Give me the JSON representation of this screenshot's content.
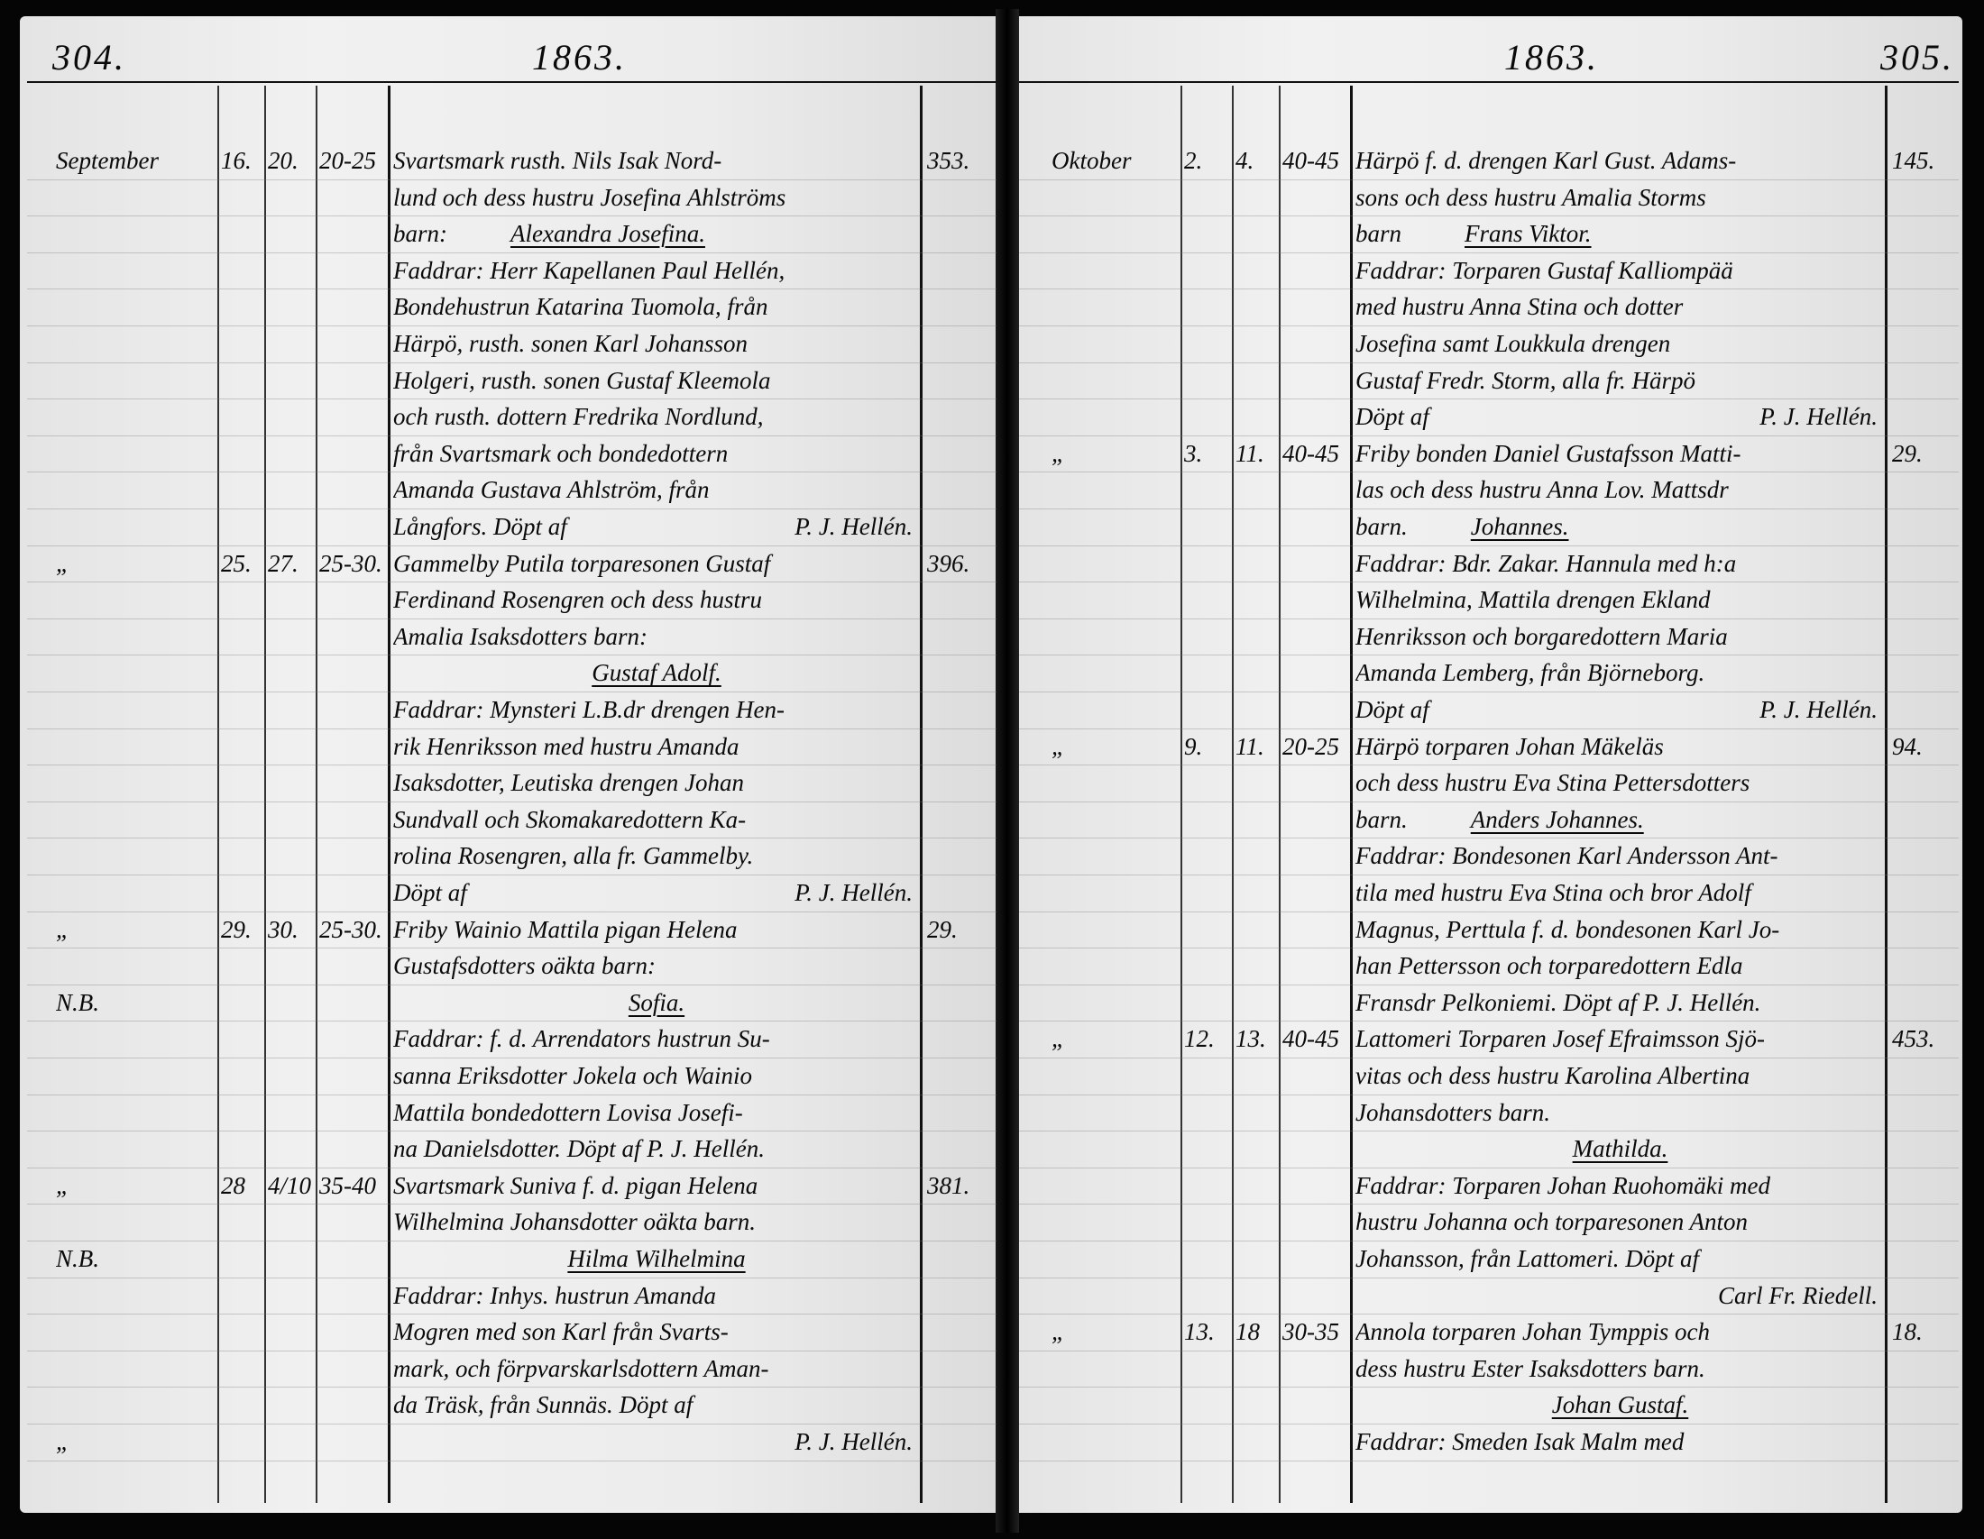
{
  "left_page": {
    "page_number": "304.",
    "year": "1863.",
    "lines": [
      {
        "m": "September",
        "a": "16.",
        "b": "20.",
        "c": "20-25",
        "t": "Svartsmark rusth. Nils Isak Nord-",
        "n": "353."
      },
      {
        "t": "lund och dess hustru Josefina Ahlströms"
      },
      {
        "t": "barn:",
        "name": "Alexandra Josefina."
      },
      {
        "t": "Faddrar: Herr Kapellanen Paul Hellén,"
      },
      {
        "t": "Bondehustrun Katarina Tuomola, från"
      },
      {
        "t": "Härpö, rusth. sonen Karl Johansson"
      },
      {
        "t": "Holgeri, rusth. sonen Gustaf Kleemola"
      },
      {
        "t": "och rusth. dottern Fredrika Nordlund,"
      },
      {
        "t": "från Svartsmark och bondedottern"
      },
      {
        "t": "Amanda Gustava Ahlström, från"
      },
      {
        "t": "Långfors. Döpt af",
        "sig": "P. J. Hellén."
      },
      {
        "m": "„",
        "a": "25.",
        "b": "27.",
        "c": "25-30.",
        "t": "Gammelby Putila torparesonen Gustaf",
        "n": "396."
      },
      {
        "t": "Ferdinand Rosengren och dess hustru"
      },
      {
        "t": "Amalia Isaksdotters barn:"
      },
      {
        "name": "Gustaf Adolf."
      },
      {
        "t": "Faddrar: Mynsteri L.B.dr drengen Hen-"
      },
      {
        "t": "rik Henriksson med hustru Amanda"
      },
      {
        "t": "Isaksdotter, Leutiska drengen Johan"
      },
      {
        "t": "Sundvall och Skomakaredottern Ka-"
      },
      {
        "t": "rolina Rosengren, alla fr. Gammelby."
      },
      {
        "t": "Döpt af",
        "sig": "P. J. Hellén."
      },
      {
        "m": "„",
        "a": "29.",
        "b": "30.",
        "c": "25-30.",
        "t": "Friby Wainio Mattila pigan Helena",
        "n": "29."
      },
      {
        "t": "Gustafsdotters oäkta barn:"
      },
      {
        "m": "N.B.",
        "name": "Sofia."
      },
      {
        "t": "Faddrar: f. d. Arrendators hustrun Su-"
      },
      {
        "t": "sanna Eriksdotter Jokela och Wainio"
      },
      {
        "t": "Mattila bondedottern Lovisa Josefi-"
      },
      {
        "t": "na Danielsdotter. Döpt af P. J. Hellén."
      },
      {
        "m": "„",
        "a": "28",
        "b": "4/10",
        "c": "35-40",
        "t": "Svartsmark Suniva f. d. pigan Helena",
        "n": "381."
      },
      {
        "t": "Wilhelmina Johansdotter oäkta barn."
      },
      {
        "m": "N.B.",
        "name": "Hilma Wilhelmina"
      },
      {
        "t": "Faddrar: Inhys. hustrun Amanda"
      },
      {
        "t": "Mogren med son Karl från Svarts-"
      },
      {
        "t": "mark, och förpvarskarlsdottern Aman-"
      },
      {
        "t": "da Träsk, från Sunnäs. Döpt af"
      },
      {
        "m": "„",
        "sig": "P. J. Hellén."
      }
    ]
  },
  "right_page": {
    "page_number": "305.",
    "year": "1863.",
    "lines": [
      {
        "m": "Oktober",
        "a": "2.",
        "b": "4.",
        "c": "40-45",
        "t": "Härpö f. d. drengen Karl Gust. Adams-",
        "n": "145."
      },
      {
        "t": "sons och dess hustru Amalia Storms"
      },
      {
        "t": "barn",
        "name": "Frans Viktor."
      },
      {
        "t": "Faddrar: Torparen Gustaf Kalliompää"
      },
      {
        "t": "med hustru Anna Stina och dotter"
      },
      {
        "t": "Josefina samt Loukkula drengen"
      },
      {
        "t": "Gustaf Fredr. Storm, alla fr. Härpö"
      },
      {
        "t": "Döpt af",
        "sig": "P. J. Hellén."
      },
      {
        "m": "„",
        "a": "3.",
        "b": "11.",
        "c": "40-45",
        "t": "Friby bonden Daniel Gustafsson Matti-",
        "n": "29."
      },
      {
        "t": "las och dess hustru Anna Lov. Mattsdr"
      },
      {
        "t": "barn.",
        "name": "Johannes."
      },
      {
        "t": "Faddrar: Bdr. Zakar. Hannula med h:a"
      },
      {
        "t": "Wilhelmina, Mattila drengen Ekland"
      },
      {
        "t": "Henriksson och borgaredottern Maria"
      },
      {
        "t": "Amanda Lemberg, från Björneborg."
      },
      {
        "t": "Döpt af",
        "sig": "P. J. Hellén."
      },
      {
        "m": "„",
        "a": "9.",
        "b": "11.",
        "c": "20-25",
        "t": "Härpö torparen Johan Mäkeläs",
        "n": "94."
      },
      {
        "t": "och dess hustru Eva Stina Pettersdotters"
      },
      {
        "t": "barn.",
        "name": "Anders Johannes."
      },
      {
        "t": "Faddrar: Bondesonen Karl Andersson Ant-"
      },
      {
        "t": "tila med hustru Eva Stina och bror Adolf"
      },
      {
        "t": "Magnus, Perttula f. d. bondesonen Karl Jo-"
      },
      {
        "t": "han Pettersson och torparedottern Edla"
      },
      {
        "t": "Fransdr Pelkoniemi. Döpt af P. J. Hellén."
      },
      {
        "m": "„",
        "a": "12.",
        "b": "13.",
        "c": "40-45",
        "t": "Lattomeri Torparen Josef Efraimsson Sjö-",
        "n": "453."
      },
      {
        "t": "vitas och dess hustru Karolina Albertina"
      },
      {
        "t": "Johansdotters barn."
      },
      {
        "name": "Mathilda."
      },
      {
        "t": "Faddrar: Torparen Johan Ruohomäki med"
      },
      {
        "t": "hustru Johanna och torparesonen Anton"
      },
      {
        "t": "Johansson, från Lattomeri. Döpt af"
      },
      {
        "sig": "Carl Fr. Riedell."
      },
      {
        "m": "„",
        "a": "13.",
        "b": "18",
        "c": "30-35",
        "t": "Annola torparen Johan Tymppis och",
        "n": "18."
      },
      {
        "t": "dess hustru Ester Isaksdotters barn."
      },
      {
        "name": "Johan Gustaf."
      },
      {
        "t": "Faddrar: Smeden Isak Malm med"
      }
    ]
  }
}
